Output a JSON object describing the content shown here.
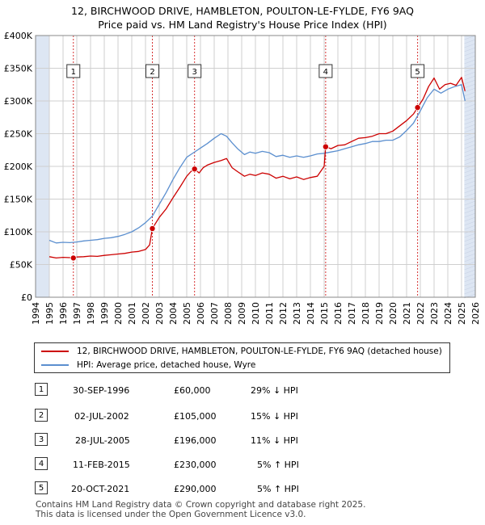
{
  "title_line1": "12, BIRCHWOOD DRIVE, HAMBLETON, POULTON-LE-FYLDE, FY6 9AQ",
  "title_line2": "Price paid vs. HM Land Registry's House Price Index (HPI)",
  "colors": {
    "price": "#cc0000",
    "hpi": "#5b8fcf",
    "shade": "#dde6f3",
    "marker": "#cc0000"
  },
  "chart_data": {
    "type": "line",
    "xlim": [
      1994,
      2026
    ],
    "ylim": [
      0,
      400000
    ],
    "x_ticks": [
      "1994",
      "1995",
      "1996",
      "1997",
      "1998",
      "1999",
      "2000",
      "2001",
      "2002",
      "2003",
      "2004",
      "2005",
      "2006",
      "2007",
      "2008",
      "2009",
      "2010",
      "2011",
      "2012",
      "2013",
      "2014",
      "2015",
      "2016",
      "2017",
      "2018",
      "2019",
      "2020",
      "2021",
      "2022",
      "2023",
      "2024",
      "2025",
      "2026"
    ],
    "y_ticks": [
      {
        "value": 0,
        "label": "£0"
      },
      {
        "value": 50000,
        "label": "£50K"
      },
      {
        "value": 100000,
        "label": "£100K"
      },
      {
        "value": 150000,
        "label": "£150K"
      },
      {
        "value": 200000,
        "label": "£200K"
      },
      {
        "value": 250000,
        "label": "£250K"
      },
      {
        "value": 300000,
        "label": "£300K"
      },
      {
        "value": 350000,
        "label": "£350K"
      },
      {
        "value": 400000,
        "label": "£400K"
      }
    ],
    "shaded_ranges": [
      [
        1994,
        1995.0
      ],
      [
        2025.2,
        2026
      ]
    ],
    "series": [
      {
        "name": "12, BIRCHWOOD DRIVE, HAMBLETON, POULTON-LE-FYLDE, FY6 9AQ (detached house)",
        "x": [
          1995.0,
          1995.5,
          1996.0,
          1996.5,
          1996.75,
          1997.0,
          1997.5,
          1998.0,
          1998.5,
          1999.0,
          1999.5,
          2000.0,
          2000.5,
          2001.0,
          2001.5,
          2002.0,
          2002.3,
          2002.5,
          2003.0,
          2003.5,
          2004.0,
          2004.5,
          2005.0,
          2005.3,
          2005.57,
          2005.9,
          2006.2,
          2006.5,
          2007.0,
          2007.5,
          2007.9,
          2008.3,
          2008.7,
          2009.2,
          2009.6,
          2010.0,
          2010.5,
          2011.0,
          2011.5,
          2012.0,
          2012.5,
          2013.0,
          2013.5,
          2014.0,
          2014.5,
          2015.0,
          2015.11,
          2015.5,
          2016.0,
          2016.5,
          2017.0,
          2017.5,
          2018.0,
          2018.5,
          2019.0,
          2019.5,
          2020.0,
          2020.5,
          2021.0,
          2021.5,
          2021.8,
          2022.2,
          2022.6,
          2023.0,
          2023.4,
          2023.8,
          2024.2,
          2024.6,
          2025.0,
          2025.25
        ],
        "y": [
          62000,
          60000,
          61000,
          60500,
          60000,
          61500,
          62000,
          63000,
          62500,
          64000,
          65000,
          66000,
          67000,
          69000,
          70000,
          73000,
          80000,
          105000,
          122000,
          135000,
          152000,
          168000,
          185000,
          192000,
          196000,
          190000,
          198000,
          202000,
          206000,
          209000,
          212000,
          198000,
          192000,
          185000,
          188000,
          186000,
          190000,
          188000,
          182000,
          185000,
          181000,
          184000,
          180000,
          183000,
          185000,
          200000,
          230000,
          227000,
          232000,
          233000,
          238000,
          243000,
          244000,
          246000,
          250000,
          250000,
          254000,
          262000,
          270000,
          280000,
          290000,
          303000,
          322000,
          335000,
          318000,
          325000,
          327000,
          324000,
          336000,
          315000
        ]
      },
      {
        "name": "HPI: Average price, detached house, Wyre",
        "x": [
          1995.0,
          1995.5,
          1996.0,
          1996.5,
          1997.0,
          1997.5,
          1998.0,
          1998.5,
          1999.0,
          1999.5,
          2000.0,
          2000.5,
          2001.0,
          2001.5,
          2002.0,
          2002.5,
          2003.0,
          2003.5,
          2004.0,
          2004.5,
          2005.0,
          2005.5,
          2006.0,
          2006.5,
          2007.0,
          2007.5,
          2007.9,
          2008.3,
          2008.7,
          2009.2,
          2009.6,
          2010.0,
          2010.5,
          2011.0,
          2011.5,
          2012.0,
          2012.5,
          2013.0,
          2013.5,
          2014.0,
          2014.5,
          2015.0,
          2015.5,
          2016.0,
          2016.5,
          2017.0,
          2017.5,
          2018.0,
          2018.5,
          2019.0,
          2019.5,
          2020.0,
          2020.5,
          2021.0,
          2021.5,
          2022.0,
          2022.5,
          2023.0,
          2023.5,
          2024.0,
          2024.5,
          2025.0,
          2025.25
        ],
        "y": [
          87000,
          83000,
          84000,
          83500,
          84500,
          86000,
          87000,
          88000,
          90000,
          91000,
          93000,
          96000,
          100000,
          106000,
          114000,
          124000,
          142000,
          160000,
          180000,
          198000,
          214000,
          221000,
          228000,
          235000,
          243000,
          250000,
          246000,
          236000,
          227000,
          218000,
          222000,
          220000,
          223000,
          221000,
          215000,
          217000,
          214000,
          216000,
          214000,
          216000,
          219000,
          220000,
          222000,
          224000,
          227000,
          230000,
          233000,
          235000,
          238000,
          238000,
          240000,
          240000,
          245000,
          255000,
          266000,
          285000,
          305000,
          318000,
          312000,
          318000,
          322000,
          325000,
          300000
        ]
      }
    ],
    "transactions": [
      {
        "num": "1",
        "x": 1996.75,
        "y": 60000,
        "date": "30-SEP-1996",
        "price": "£60,000",
        "hpi": "29% ↓ HPI"
      },
      {
        "num": "2",
        "x": 2002.5,
        "y": 105000,
        "date": "02-JUL-2002",
        "price": "£105,000",
        "hpi": "15% ↓ HPI"
      },
      {
        "num": "3",
        "x": 2005.57,
        "y": 196000,
        "date": "28-JUL-2005",
        "price": "£196,000",
        "hpi": "11% ↓ HPI"
      },
      {
        "num": "4",
        "x": 2015.11,
        "y": 230000,
        "date": "11-FEB-2015",
        "price": "£230,000",
        "hpi": "5% ↑ HPI"
      },
      {
        "num": "5",
        "x": 2021.8,
        "y": 290000,
        "date": "20-OCT-2021",
        "price": "£290,000",
        "hpi": "5% ↑ HPI"
      }
    ]
  },
  "legend": {
    "price_label": "12, BIRCHWOOD DRIVE, HAMBLETON, POULTON-LE-FYLDE, FY6 9AQ (detached house)",
    "hpi_label": "HPI: Average price, detached house, Wyre"
  },
  "footer_line1": "Contains HM Land Registry data © Crown copyright and database right 2025.",
  "footer_line2": "This data is licensed under the Open Government Licence v3.0."
}
